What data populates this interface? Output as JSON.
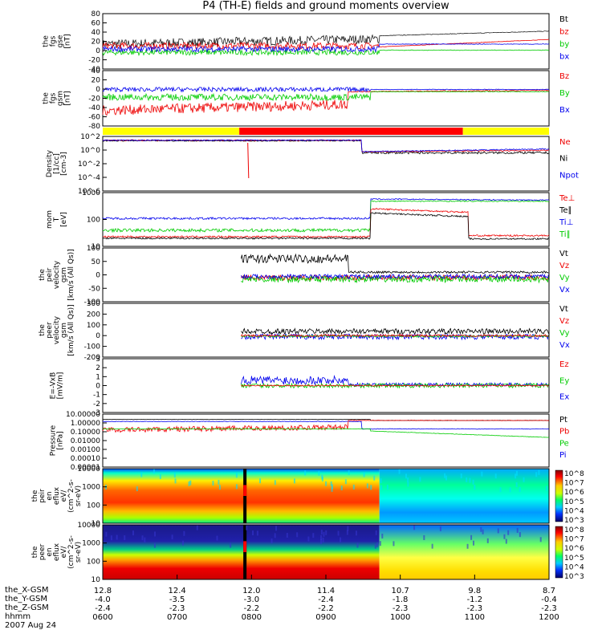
{
  "title": "P4 (TH-E) fields and ground moments overview",
  "colors": {
    "black": "#000000",
    "red": "#ee0000",
    "green": "#00cc00",
    "blue": "#0000ee",
    "yellow": "#ffff00",
    "barred": "#ff0000"
  },
  "chart_data": [
    {
      "type": "line",
      "name": "fgs_gse",
      "ylabel": [
        "the",
        "fgs",
        "gse",
        "[nT]"
      ],
      "ylim": [
        -40,
        80
      ],
      "ticks": [
        "80",
        "60",
        "40",
        "20",
        "0",
        "-20",
        "-40"
      ],
      "legend": [
        {
          "label": "Bt",
          "color": "black"
        },
        {
          "label": "bz",
          "color": "red"
        },
        {
          "label": "by",
          "color": "green"
        },
        {
          "label": "bx",
          "color": "blue"
        }
      ]
    },
    {
      "type": "line",
      "name": "fgs_gsm",
      "ylabel": [
        "the",
        "fgs",
        "gsm",
        "[nT]"
      ],
      "ylim": [
        -80,
        40
      ],
      "ticks": [
        "40",
        "20",
        "0",
        "-20",
        "-40",
        "-60",
        "-80"
      ],
      "legend": [
        {
          "label": "Bz",
          "color": "red"
        },
        {
          "label": "By",
          "color": "green"
        },
        {
          "label": "Bx",
          "color": "blue"
        }
      ]
    },
    {
      "type": "bar",
      "name": "mode_bar",
      "segments": [
        {
          "from": 0,
          "to": 0.306,
          "color": "yellow"
        },
        {
          "from": 0.306,
          "to": 0.807,
          "color": "barred"
        },
        {
          "from": 0.807,
          "to": 1,
          "color": "yellow"
        }
      ]
    },
    {
      "type": "line",
      "name": "density",
      "scale": "log",
      "ylabel": [
        "Density",
        "[1/cc]",
        "[cm-3]"
      ],
      "ticks": [
        "10^2",
        "10^0",
        "10^-2",
        "10^-4",
        "10^-6"
      ],
      "legend": [
        {
          "label": "Ne",
          "color": "red"
        },
        {
          "label": "Ni",
          "color": "black"
        },
        {
          "label": "Npot",
          "color": "blue"
        }
      ]
    },
    {
      "type": "line",
      "name": "temperature",
      "scale": "log",
      "ylabel": [
        "mom",
        "T",
        "[eV]"
      ],
      "ticks": [
        "1000",
        "100",
        "10"
      ],
      "legend": [
        {
          "label": "Te⊥",
          "color": "red"
        },
        {
          "label": "Te∥",
          "color": "black"
        },
        {
          "label": "Ti⊥",
          "color": "blue"
        },
        {
          "label": "Ti∥",
          "color": "green"
        }
      ]
    },
    {
      "type": "line",
      "name": "peir_velocity",
      "ylabel": [
        "the",
        "peir",
        "velocity",
        "gsm",
        "[km/s (All Qs)]"
      ],
      "ylim": [
        -100,
        100
      ],
      "ticks": [
        "100",
        "50",
        "0",
        "-50",
        "-100"
      ],
      "legend": [
        {
          "label": "Vt",
          "color": "black"
        },
        {
          "label": "Vz",
          "color": "red"
        },
        {
          "label": "Vy",
          "color": "green"
        },
        {
          "label": "Vx",
          "color": "blue"
        }
      ]
    },
    {
      "type": "line",
      "name": "peer_velocity",
      "ylabel": [
        "the",
        "peer",
        "velocity",
        "gsm",
        "[km/s (All Qs)]"
      ],
      "ylim": [
        -200,
        300
      ],
      "ticks": [
        "300",
        "200",
        "100",
        "0",
        "-100",
        "-200"
      ],
      "legend": [
        {
          "label": "Vt",
          "color": "black"
        },
        {
          "label": "Vz",
          "color": "red"
        },
        {
          "label": "Vy",
          "color": "green"
        },
        {
          "label": "Vx",
          "color": "blue"
        }
      ]
    },
    {
      "type": "line",
      "name": "efield",
      "ylabel": [
        "E=-VxB",
        "[mV/m]"
      ],
      "ylim": [
        -3,
        3
      ],
      "ticks": [
        "3",
        "2",
        "1",
        "0",
        "-1",
        "-2",
        "-3"
      ],
      "legend": [
        {
          "label": "Ez",
          "color": "red"
        },
        {
          "label": "Ey",
          "color": "green"
        },
        {
          "label": "Ex",
          "color": "blue"
        }
      ]
    },
    {
      "type": "line",
      "name": "pressure",
      "scale": "log",
      "ylabel": [
        "Pressure",
        "[nPa]"
      ],
      "ticks": [
        "10.00000",
        "1.00000",
        "0.10000",
        "0.01000",
        "0.00100",
        "0.00010",
        "0.00001"
      ],
      "legend": [
        {
          "label": "Pt",
          "color": "black"
        },
        {
          "label": "Pb",
          "color": "red"
        },
        {
          "label": "Pe",
          "color": "green"
        },
        {
          "label": "Pi",
          "color": "blue"
        }
      ]
    },
    {
      "type": "heatmap",
      "name": "peir_spectrogram",
      "ylabel": [
        "the",
        "peir",
        "en",
        "eflux",
        "eV/",
        "(cm^2-s-",
        "sr-eV)"
      ],
      "ticks": [
        "10000",
        "1000",
        "100",
        "10"
      ],
      "colorbar": [
        "10^8",
        "10^7",
        "10^6",
        "10^5",
        "10^4",
        "10^3"
      ]
    },
    {
      "type": "heatmap",
      "name": "peer_spectrogram",
      "ylabel": [
        "the",
        "peer",
        "en",
        "eflux",
        "eV/",
        "(cm^2-s-",
        "sr-eV)"
      ],
      "ticks": [
        "10000",
        "1000",
        "100",
        "10"
      ],
      "colorbar": [
        "10^8",
        "10^7",
        "10^6",
        "10^5",
        "10^4",
        "10^3"
      ]
    }
  ],
  "x_axis": {
    "rows": [
      {
        "label": "the_X-GSM",
        "values": [
          "12.8",
          "12.4",
          "12.0",
          "11.4",
          "10.7",
          "9.8",
          "8.7"
        ]
      },
      {
        "label": "the_Y-GSM",
        "values": [
          "-4.0",
          "-3.5",
          "-3.0",
          "-2.4",
          "-1.8",
          "-1.2",
          "-0.4"
        ]
      },
      {
        "label": "the_Z-GSM",
        "values": [
          "-2.4",
          "-2.3",
          "-2.2",
          "-2.2",
          "-2.3",
          "-2.3",
          "-2.3"
        ]
      },
      {
        "label": "hhmm",
        "values": [
          "0600",
          "0700",
          "0800",
          "0900",
          "1000",
          "1100",
          "1200"
        ]
      }
    ],
    "date": "2007 Aug 24"
  }
}
